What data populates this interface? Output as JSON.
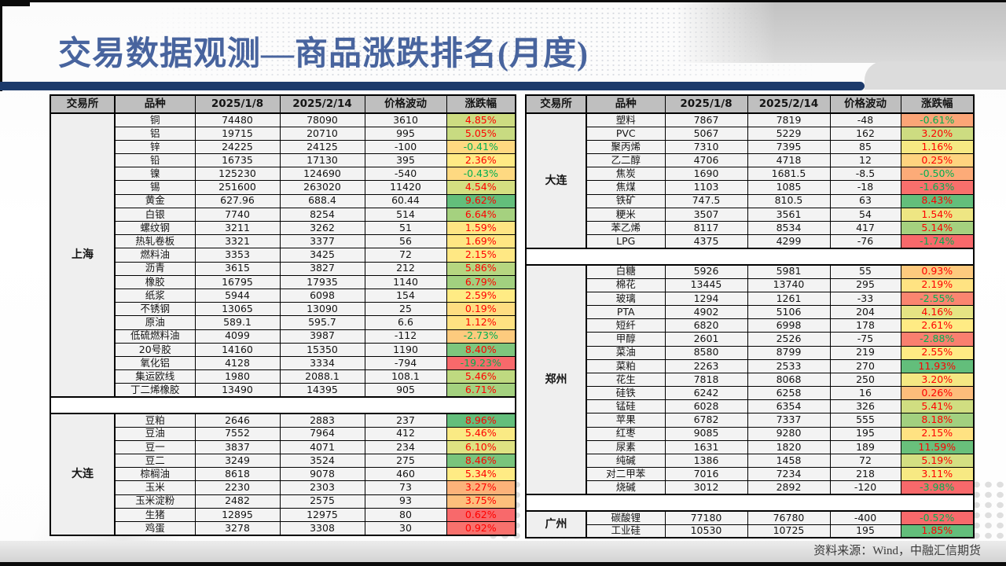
{
  "title": "交易数据观测—商品涨跌排名(月度)",
  "source_note": "资料来源：Wind，中融汇信期货",
  "colors": {
    "title": "#48649E",
    "accent_bar": "#1C3A6B",
    "header_bg": "#BFBFBF",
    "positive_text": "#FF0000",
    "negative_text": "#00B050",
    "scale_max_green": "#63BE7B",
    "scale_mid_yellow": "#FFEB84",
    "scale_min_red": "#F8696B"
  },
  "columns": [
    "交易所",
    "品种",
    "2025/1/8",
    "2025/2/14",
    "价格波动",
    "涨跌幅"
  ],
  "tables": [
    {
      "id": "left",
      "groups": [
        {
          "exchange": "上海",
          "rows": [
            [
              "铜",
              "74480",
              "78090",
              "3610",
              "4.85%",
              "#CDDC81"
            ],
            [
              "铝",
              "19715",
              "20710",
              "995",
              "5.05%",
              "#C8DB81"
            ],
            [
              "锌",
              "24225",
              "24125",
              "-100",
              "-0.41%",
              "#FED981"
            ],
            [
              "铅",
              "16735",
              "17130",
              "395",
              "2.36%",
              "#FFEA84"
            ],
            [
              "镍",
              "125230",
              "124690",
              "-540",
              "-0.43%",
              "#FED981"
            ],
            [
              "锡",
              "251600",
              "263020",
              "11420",
              "4.54%",
              "#D4DF81"
            ],
            [
              "黄金",
              "627.96",
              "688.4",
              "60.44",
              "9.62%",
              "#63BE7B"
            ],
            [
              "白银",
              "7740",
              "8254",
              "514",
              "6.64%",
              "#A5D17F"
            ],
            [
              "螺纹钢",
              "3211",
              "3262",
              "51",
              "1.59%",
              "#FFE583"
            ],
            [
              "热轧卷板",
              "3321",
              "3377",
              "56",
              "1.69%",
              "#FFE683"
            ],
            [
              "燃料油",
              "3353",
              "3425",
              "72",
              "2.15%",
              "#FFE884"
            ],
            [
              "沥青",
              "3615",
              "3827",
              "212",
              "5.86%",
              "#B6D680"
            ],
            [
              "橡胶",
              "16795",
              "17935",
              "1140",
              "6.79%",
              "#A2D07F"
            ],
            [
              "纸浆",
              "5944",
              "6098",
              "154",
              "2.59%",
              "#FFEB84"
            ],
            [
              "不锈钢",
              "13065",
              "13090",
              "25",
              "0.19%",
              "#FEDD81"
            ],
            [
              "原油",
              "589.1",
              "595.7",
              "6.6",
              "1.12%",
              "#FFE282"
            ],
            [
              "低硫燃料油",
              "4099",
              "3987",
              "-112",
              "-2.73%",
              "#FDCB7E"
            ],
            [
              "20号胶",
              "14160",
              "15350",
              "1190",
              "8.40%",
              "#7EC67D"
            ],
            [
              "氧化铝",
              "4128",
              "3334",
              "-794",
              "-19.23%",
              "#F8696B"
            ],
            [
              "集运欧线",
              "1980",
              "2088.1",
              "108.1",
              "5.46%",
              "#BFD980"
            ],
            [
              "丁二烯橡胶",
              "13490",
              "14395",
              "905",
              "6.71%",
              "#A4D17F"
            ]
          ]
        },
        {
          "exchange": "大连",
          "rows": [
            [
              "豆粕",
              "2646",
              "2883",
              "237",
              "8.96%",
              "#63BE7B"
            ],
            [
              "豆油",
              "7552",
              "7964",
              "412",
              "5.46%",
              "#FAEA84"
            ],
            [
              "豆一",
              "3837",
              "4071",
              "234",
              "6.10%",
              "#DEE282"
            ],
            [
              "豆二",
              "3249",
              "3524",
              "275",
              "8.46%",
              "#79C47C"
            ],
            [
              "棕榈油",
              "8618",
              "9078",
              "460",
              "5.34%",
              "#FFEB84"
            ],
            [
              "玉米",
              "2230",
              "2303",
              "73",
              "3.27%",
              "#FCB279"
            ],
            [
              "玉米淀粉",
              "2482",
              "2575",
              "93",
              "3.75%",
              "#FDBF7C"
            ],
            [
              "生猪",
              "12895",
              "12975",
              "80",
              "0.62%",
              "#F8696B"
            ],
            [
              "鸡蛋",
              "3278",
              "3308",
              "30",
              "0.92%",
              "#F8716D"
            ]
          ]
        }
      ]
    },
    {
      "id": "right",
      "groups": [
        {
          "exchange": "大连",
          "rows": [
            [
              "塑料",
              "7867",
              "7819",
              "-48",
              "-0.61%",
              "#FBA577"
            ],
            [
              "PVC",
              "5067",
              "5229",
              "162",
              "3.20%",
              "#CDDC81"
            ],
            [
              "聚丙烯",
              "7310",
              "7395",
              "85",
              "1.16%",
              "#F6E883"
            ],
            [
              "乙二醇",
              "4706",
              "4718",
              "12",
              "0.25%",
              "#FED37F"
            ],
            [
              "焦炭",
              "1690",
              "1681.5",
              "-8.5",
              "-0.50%",
              "#FCAB78"
            ],
            [
              "焦煤",
              "1103",
              "1085",
              "-18",
              "-1.63%",
              "#F86F6C"
            ],
            [
              "铁矿",
              "747.5",
              "810.5",
              "63",
              "8.43%",
              "#63BE7B"
            ],
            [
              "粳米",
              "3507",
              "3561",
              "54",
              "1.54%",
              "#EEE683"
            ],
            [
              "苯乙烯",
              "8117",
              "8534",
              "417",
              "5.14%",
              "#A5D17F"
            ],
            [
              "LPG",
              "4375",
              "4299",
              "-76",
              "-1.74%",
              "#F8696B"
            ]
          ]
        },
        {
          "exchange": "郑州",
          "rows": [
            [
              "白糖",
              "5926",
              "5981",
              "55",
              "0.93%",
              "#FDCA7E"
            ],
            [
              "棉花",
              "13445",
              "13740",
              "295",
              "2.19%",
              "#FFE382"
            ],
            [
              "玻璃",
              "1294",
              "1261",
              "-33",
              "-2.55%",
              "#FA8570"
            ],
            [
              "PTA",
              "4902",
              "5106",
              "204",
              "4.16%",
              "#E5E483"
            ],
            [
              "短纤",
              "6820",
              "6998",
              "178",
              "2.61%",
              "#FFEB84"
            ],
            [
              "甲醇",
              "2601",
              "2526",
              "-75",
              "-2.88%",
              "#F97F6F"
            ],
            [
              "菜油",
              "8580",
              "8799",
              "219",
              "2.55%",
              "#FFEA84"
            ],
            [
              "菜粕",
              "2263",
              "2533",
              "270",
              "11.93%",
              "#63BE7B"
            ],
            [
              "花生",
              "7818",
              "8068",
              "250",
              "3.20%",
              "#F5E883"
            ],
            [
              "硅铁",
              "6242",
              "6258",
              "16",
              "0.26%",
              "#FDBD7B"
            ],
            [
              "锰硅",
              "6028",
              "6354",
              "326",
              "5.41%",
              "#D0DE81"
            ],
            [
              "苹果",
              "6782",
              "7337",
              "555",
              "8.18%",
              "#A2D07F"
            ],
            [
              "红枣",
              "9085",
              "9280",
              "195",
              "2.15%",
              "#FFE282"
            ],
            [
              "尿素",
              "1631",
              "1820",
              "189",
              "11.59%",
              "#69C07B"
            ],
            [
              "纯碱",
              "1386",
              "1458",
              "72",
              "5.19%",
              "#D4DF82"
            ],
            [
              "对二甲苯",
              "7016",
              "7234",
              "218",
              "3.11%",
              "#F7E983"
            ],
            [
              "烧碱",
              "3012",
              "2892",
              "-120",
              "-3.98%",
              "#F8696B"
            ]
          ]
        },
        {
          "exchange": "广州",
          "rows": [
            [
              "碳酸锂",
              "77180",
              "76780",
              "-400",
              "-0.52%",
              "#F8696B"
            ],
            [
              "工业硅",
              "10530",
              "10725",
              "195",
              "1.85%",
              "#63BE7B"
            ]
          ]
        }
      ]
    }
  ]
}
